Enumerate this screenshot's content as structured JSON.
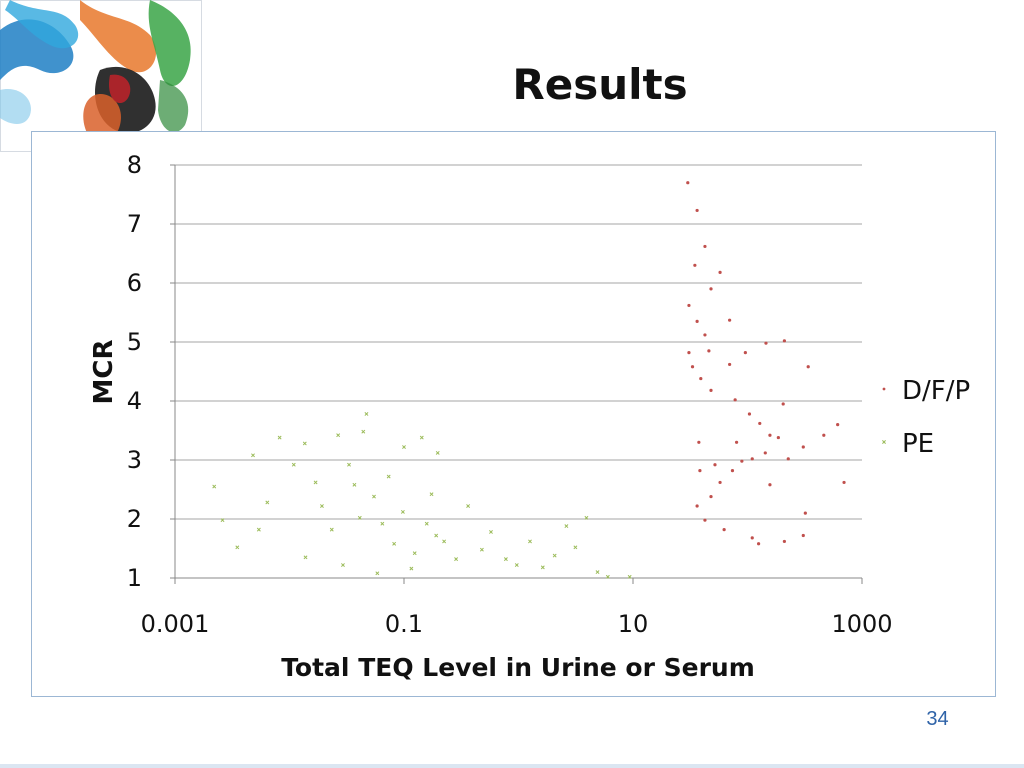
{
  "slide": {
    "title": "Results",
    "page_number": "34"
  },
  "colors": {
    "series_dfp": "#c0504d",
    "series_pe": "#9bbb59",
    "gridline": "#a6a6a6",
    "frame_border": "#9cb7d4",
    "page_number": "#2f63a8"
  },
  "chart_data": {
    "type": "scatter",
    "title": "",
    "xlabel": "Total TEQ Level in Urine or Serum",
    "ylabel": "MCR",
    "x_scale": "log",
    "xlim": [
      0.001,
      1000
    ],
    "ylim": [
      1,
      8
    ],
    "x_ticks": [
      "0.001",
      "0.1",
      "10",
      "1000"
    ],
    "y_ticks": [
      "1",
      "2",
      "3",
      "4",
      "5",
      "6",
      "7",
      "8"
    ],
    "grid": "horizontal",
    "legend_position": "right",
    "series": [
      {
        "name": "D/F/P",
        "marker": "dot",
        "color": "#c0504d",
        "points": [
          [
            30.1,
            7.7
          ],
          [
            36.3,
            7.23
          ],
          [
            42.5,
            6.62
          ],
          [
            34.7,
            6.3
          ],
          [
            57.6,
            6.18
          ],
          [
            48.0,
            5.9
          ],
          [
            30.8,
            5.62
          ],
          [
            36.3,
            5.35
          ],
          [
            69.8,
            5.37
          ],
          [
            42.5,
            5.12
          ],
          [
            30.8,
            4.82
          ],
          [
            33.1,
            4.58
          ],
          [
            39.1,
            4.38
          ],
          [
            69.8,
            4.62
          ],
          [
            95.8,
            4.82
          ],
          [
            145.0,
            4.98
          ],
          [
            210.0,
            5.02
          ],
          [
            339.0,
            4.58
          ],
          [
            48.0,
            4.18
          ],
          [
            78.0,
            4.02
          ],
          [
            104.0,
            3.78
          ],
          [
            128.0,
            3.62
          ],
          [
            157.0,
            3.42
          ],
          [
            186.0,
            3.38
          ],
          [
            143.0,
            3.12
          ],
          [
            110.0,
            3.02
          ],
          [
            89.3,
            2.98
          ],
          [
            73.9,
            2.82
          ],
          [
            57.6,
            2.62
          ],
          [
            48.0,
            2.38
          ],
          [
            36.3,
            2.22
          ],
          [
            42.5,
            1.98
          ],
          [
            62.5,
            1.82
          ],
          [
            110.0,
            1.68
          ],
          [
            125.0,
            1.58
          ],
          [
            210.0,
            1.62
          ],
          [
            307.0,
            1.72
          ],
          [
            157.0,
            2.58
          ],
          [
            227.0,
            3.02
          ],
          [
            307.0,
            3.22
          ],
          [
            464.0,
            3.42
          ],
          [
            613.0,
            3.6
          ],
          [
            697.0,
            2.62
          ],
          [
            37.6,
            3.3
          ],
          [
            46.0,
            4.85
          ],
          [
            38.4,
            2.82
          ],
          [
            80.3,
            3.3
          ],
          [
            205.0,
            3.95
          ],
          [
            320.0,
            2.1
          ],
          [
            52.0,
            2.92
          ]
        ]
      },
      {
        "name": "PE",
        "marker": "x",
        "color": "#9bbb59",
        "points": [
          [
            0.0022,
            2.55
          ],
          [
            0.0048,
            3.08
          ],
          [
            0.0026,
            1.98
          ],
          [
            0.0035,
            1.52
          ],
          [
            0.0054,
            1.82
          ],
          [
            0.0064,
            2.28
          ],
          [
            0.0082,
            3.38
          ],
          [
            0.0109,
            2.92
          ],
          [
            0.0136,
            3.28
          ],
          [
            0.0169,
            2.62
          ],
          [
            0.0192,
            2.22
          ],
          [
            0.0234,
            1.82
          ],
          [
            0.0266,
            3.42
          ],
          [
            0.0331,
            2.92
          ],
          [
            0.0441,
            3.48
          ],
          [
            0.047,
            3.78
          ],
          [
            0.0369,
            2.58
          ],
          [
            0.0411,
            2.02
          ],
          [
            0.0547,
            2.38
          ],
          [
            0.0647,
            1.92
          ],
          [
            0.0735,
            2.72
          ],
          [
            0.082,
            1.58
          ],
          [
            0.0978,
            2.12
          ],
          [
            0.1,
            3.22
          ],
          [
            0.124,
            1.42
          ],
          [
            0.143,
            3.38
          ],
          [
            0.158,
            1.92
          ],
          [
            0.174,
            2.42
          ],
          [
            0.197,
            3.12
          ],
          [
            0.224,
            1.62
          ],
          [
            0.285,
            1.32
          ],
          [
            0.363,
            2.22
          ],
          [
            0.479,
            1.48
          ],
          [
            0.575,
            1.78
          ],
          [
            0.776,
            1.32
          ],
          [
            0.966,
            1.22
          ],
          [
            1.26,
            1.62
          ],
          [
            1.63,
            1.18
          ],
          [
            2.07,
            1.38
          ],
          [
            2.62,
            1.88
          ],
          [
            3.14,
            1.52
          ],
          [
            3.92,
            2.02
          ],
          [
            4.9,
            1.1
          ],
          [
            6.03,
            1.02
          ],
          [
            9.35,
            1.02
          ],
          [
            0.0138,
            1.35
          ],
          [
            0.0293,
            1.22
          ],
          [
            0.0585,
            1.08
          ],
          [
            0.116,
            1.16
          ],
          [
            0.191,
            1.72
          ]
        ]
      }
    ]
  }
}
